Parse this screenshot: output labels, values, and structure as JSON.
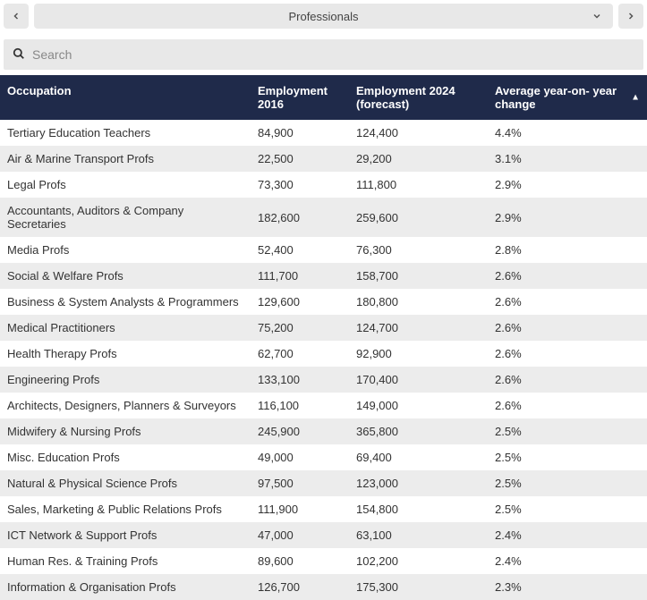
{
  "header": {
    "dropdown_label": "Professionals"
  },
  "search": {
    "placeholder": "Search"
  },
  "table": {
    "columns": [
      {
        "label": "Occupation"
      },
      {
        "label": "Employment 2016"
      },
      {
        "label": "Employment 2024 (forecast)"
      },
      {
        "label": "Average year-on- year change",
        "sorted": "desc"
      }
    ],
    "rows": [
      {
        "occ": "Tertiary Education Teachers",
        "e2016": "84,900",
        "e2024": "124,400",
        "avg": "4.4%"
      },
      {
        "occ": "Air & Marine Transport Profs",
        "e2016": "22,500",
        "e2024": "29,200",
        "avg": "3.1%"
      },
      {
        "occ": "Legal Profs",
        "e2016": "73,300",
        "e2024": "111,800",
        "avg": "2.9%"
      },
      {
        "occ": "Accountants, Auditors & Company Secretaries",
        "e2016": "182,600",
        "e2024": "259,600",
        "avg": "2.9%"
      },
      {
        "occ": "Media Profs",
        "e2016": "52,400",
        "e2024": "76,300",
        "avg": "2.8%"
      },
      {
        "occ": "Social & Welfare Profs",
        "e2016": "111,700",
        "e2024": "158,700",
        "avg": "2.6%"
      },
      {
        "occ": "Business & System Analysts & Programmers",
        "e2016": "129,600",
        "e2024": "180,800",
        "avg": "2.6%"
      },
      {
        "occ": "Medical Practitioners",
        "e2016": "75,200",
        "e2024": "124,700",
        "avg": "2.6%"
      },
      {
        "occ": "Health Therapy Profs",
        "e2016": "62,700",
        "e2024": "92,900",
        "avg": "2.6%"
      },
      {
        "occ": "Engineering Profs",
        "e2016": "133,100",
        "e2024": "170,400",
        "avg": "2.6%"
      },
      {
        "occ": "Architects, Designers, Planners & Surveyors",
        "e2016": "116,100",
        "e2024": "149,000",
        "avg": "2.6%"
      },
      {
        "occ": "Midwifery & Nursing Profs",
        "e2016": "245,900",
        "e2024": "365,800",
        "avg": "2.5%"
      },
      {
        "occ": "Misc. Education Profs",
        "e2016": "49,000",
        "e2024": "69,400",
        "avg": "2.5%"
      },
      {
        "occ": "Natural & Physical Science Profs",
        "e2016": "97,500",
        "e2024": "123,000",
        "avg": "2.5%"
      },
      {
        "occ": "Sales, Marketing & Public Relations Profs",
        "e2016": "111,900",
        "e2024": "154,800",
        "avg": "2.5%"
      },
      {
        "occ": "ICT Network & Support Profs",
        "e2016": "47,000",
        "e2024": "63,100",
        "avg": "2.4%"
      },
      {
        "occ": "Human Res. & Training Profs",
        "e2016": "89,600",
        "e2024": "102,200",
        "avg": "2.4%"
      },
      {
        "occ": "Information & Organisation Profs",
        "e2016": "126,700",
        "e2024": "175,300",
        "avg": "2.3%"
      }
    ]
  },
  "colors": {
    "header_bg": "#1f2a4a",
    "row_alt_bg": "#ececec",
    "control_bg": "#e8e8e8"
  }
}
